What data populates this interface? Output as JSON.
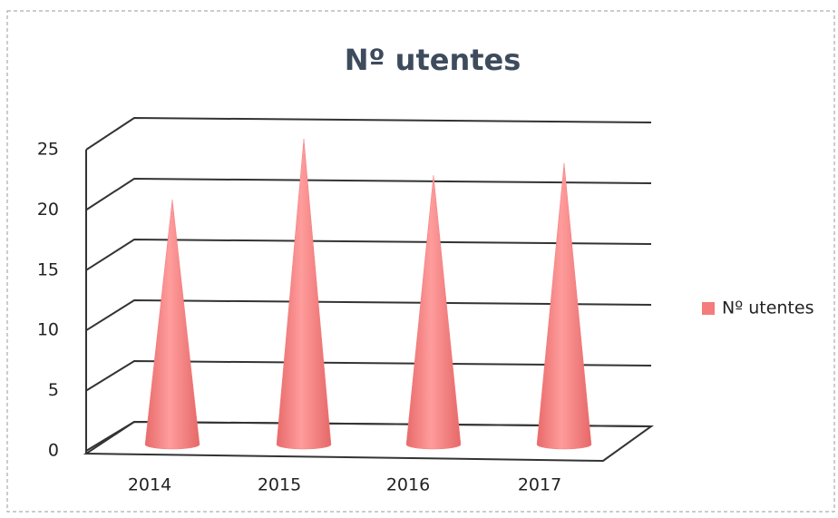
{
  "chart_data": {
    "type": "cone",
    "title": "Nº utentes",
    "categories": [
      "2014",
      "2015",
      "2016",
      "2017"
    ],
    "series": [
      {
        "name": "Nº utentes",
        "color": "#f47c7c",
        "values": [
          20,
          25,
          22,
          23
        ]
      }
    ],
    "ylim": [
      0,
      25
    ],
    "yticks": [
      0,
      5,
      10,
      15,
      20,
      25
    ],
    "grid": true,
    "legend": "right"
  }
}
